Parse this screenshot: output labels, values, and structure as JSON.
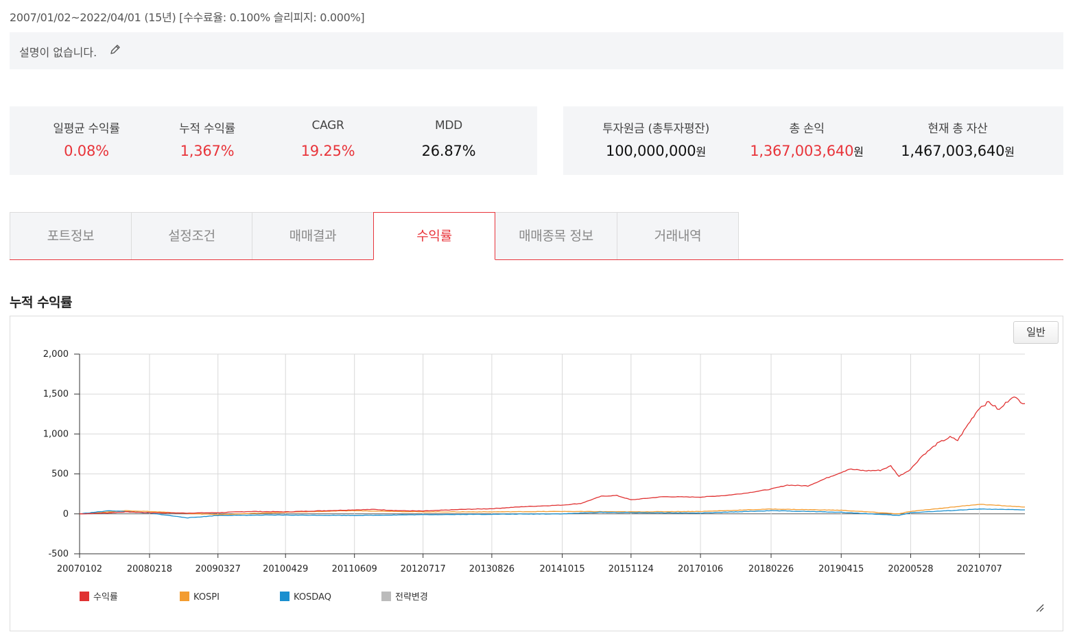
{
  "header": {
    "period": "2007/01/02~2022/04/01 (15년) [수수료율: 0.100% 슬리피지: 0.000%]",
    "description": "설명이 없습니다.",
    "edit_icon": "pencil-icon"
  },
  "stats_left": [
    {
      "label": "일평균 수익률",
      "value": "0.08%",
      "color": "#e8343a"
    },
    {
      "label": "누적 수익률",
      "value": "1,367%",
      "color": "#e8343a"
    },
    {
      "label": "CAGR",
      "value": "19.25%",
      "color": "#e8343a"
    },
    {
      "label": "MDD",
      "value": "26.87%",
      "color": "#111111"
    }
  ],
  "stats_right": [
    {
      "label": "투자원금 (총투자평잔)",
      "value": "100,000,000",
      "unit": "원",
      "color": "#111111"
    },
    {
      "label": "총 손익",
      "value": "1,367,003,640",
      "unit": "원",
      "color": "#e8343a"
    },
    {
      "label": "현재 총 자산",
      "value": "1,467,003,640",
      "unit": "원",
      "color": "#111111"
    }
  ],
  "tabs": [
    {
      "label": "포트정보",
      "active": false
    },
    {
      "label": "설정조건",
      "active": false
    },
    {
      "label": "매매결과",
      "active": false
    },
    {
      "label": "수익률",
      "active": true
    },
    {
      "label": "매매종목 정보",
      "active": false
    },
    {
      "label": "거래내역",
      "active": false
    }
  ],
  "section_title": "누적 수익률",
  "chart_mode_button": "일반",
  "chart_data": {
    "type": "line",
    "ylim": [
      -500,
      2000
    ],
    "y_ticks": [
      2000,
      1500,
      1000,
      500,
      0,
      -500
    ],
    "y_tick_labels": [
      "2,000",
      "1,500",
      "1,000",
      "500",
      "0",
      "-500"
    ],
    "x_tick_labels": [
      "20070102",
      "20080218",
      "20090327",
      "20100429",
      "20110609",
      "20120717",
      "20130826",
      "20141015",
      "20151124",
      "20170106",
      "20180226",
      "20190415",
      "20200528",
      "20210707"
    ],
    "x_range": [
      "2007-01-02",
      "2022-04-01"
    ],
    "grid": true,
    "legend_position": "bottom-left",
    "series": [
      {
        "name": "수익률",
        "color": "#e03232",
        "points": [
          [
            "2007-01-02",
            0
          ],
          [
            "2007-06-01",
            10
          ],
          [
            "2007-10-01",
            25
          ],
          [
            "2008-02-18",
            15
          ],
          [
            "2008-10-01",
            10
          ],
          [
            "2009-03-27",
            15
          ],
          [
            "2009-10-01",
            30
          ],
          [
            "2010-04-29",
            25
          ],
          [
            "2010-10-01",
            35
          ],
          [
            "2011-06-09",
            50
          ],
          [
            "2011-10-01",
            55
          ],
          [
            "2012-03-01",
            40
          ],
          [
            "2012-07-17",
            35
          ],
          [
            "2013-03-01",
            55
          ],
          [
            "2013-08-26",
            65
          ],
          [
            "2014-03-01",
            90
          ],
          [
            "2014-10-15",
            110
          ],
          [
            "2015-02-01",
            130
          ],
          [
            "2015-06-01",
            220
          ],
          [
            "2015-09-01",
            230
          ],
          [
            "2015-11-24",
            175
          ],
          [
            "2016-06-01",
            215
          ],
          [
            "2017-01-06",
            210
          ],
          [
            "2017-06-01",
            230
          ],
          [
            "2017-10-01",
            260
          ],
          [
            "2018-02-26",
            310
          ],
          [
            "2018-06-01",
            360
          ],
          [
            "2018-10-01",
            350
          ],
          [
            "2019-02-01",
            460
          ],
          [
            "2019-04-15",
            520
          ],
          [
            "2019-06-01",
            560
          ],
          [
            "2019-09-01",
            540
          ],
          [
            "2019-12-01",
            545
          ],
          [
            "2020-02-01",
            600
          ],
          [
            "2020-03-20",
            470
          ],
          [
            "2020-05-28",
            560
          ],
          [
            "2020-08-01",
            720
          ],
          [
            "2020-11-01",
            880
          ],
          [
            "2021-01-15",
            960
          ],
          [
            "2021-03-01",
            920
          ],
          [
            "2021-05-01",
            1120
          ],
          [
            "2021-07-07",
            1330
          ],
          [
            "2021-09-01",
            1400
          ],
          [
            "2021-11-01",
            1300
          ],
          [
            "2022-01-15",
            1470
          ],
          [
            "2022-04-01",
            1380
          ]
        ]
      },
      {
        "name": "KOSPI",
        "color": "#f39c30",
        "points": [
          [
            "2007-01-02",
            0
          ],
          [
            "2007-10-01",
            40
          ],
          [
            "2008-02-18",
            30
          ],
          [
            "2008-10-01",
            5
          ],
          [
            "2009-03-27",
            -10
          ],
          [
            "2010-04-29",
            20
          ],
          [
            "2011-06-09",
            40
          ],
          [
            "2012-07-17",
            25
          ],
          [
            "2013-08-26",
            25
          ],
          [
            "2014-10-15",
            30
          ],
          [
            "2015-11-24",
            25
          ],
          [
            "2017-01-06",
            30
          ],
          [
            "2018-02-26",
            60
          ],
          [
            "2019-04-15",
            45
          ],
          [
            "2020-03-20",
            0
          ],
          [
            "2020-05-28",
            30
          ],
          [
            "2021-07-07",
            120
          ],
          [
            "2022-04-01",
            85
          ]
        ]
      },
      {
        "name": "KOSDAQ",
        "color": "#1a8fcf",
        "points": [
          [
            "2007-01-02",
            0
          ],
          [
            "2007-07-01",
            40
          ],
          [
            "2008-02-18",
            10
          ],
          [
            "2008-10-01",
            -50
          ],
          [
            "2009-03-27",
            -20
          ],
          [
            "2010-04-29",
            -15
          ],
          [
            "2011-06-09",
            -20
          ],
          [
            "2012-07-17",
            -10
          ],
          [
            "2013-08-26",
            -5
          ],
          [
            "2014-10-15",
            0
          ],
          [
            "2015-06-01",
            20
          ],
          [
            "2015-11-24",
            15
          ],
          [
            "2017-01-06",
            10
          ],
          [
            "2018-02-26",
            40
          ],
          [
            "2019-04-15",
            20
          ],
          [
            "2020-03-20",
            -20
          ],
          [
            "2020-05-28",
            15
          ],
          [
            "2021-07-07",
            60
          ],
          [
            "2022-04-01",
            50
          ]
        ]
      },
      {
        "name": "전략변경",
        "color": "#bbbbbb",
        "points": []
      }
    ]
  }
}
